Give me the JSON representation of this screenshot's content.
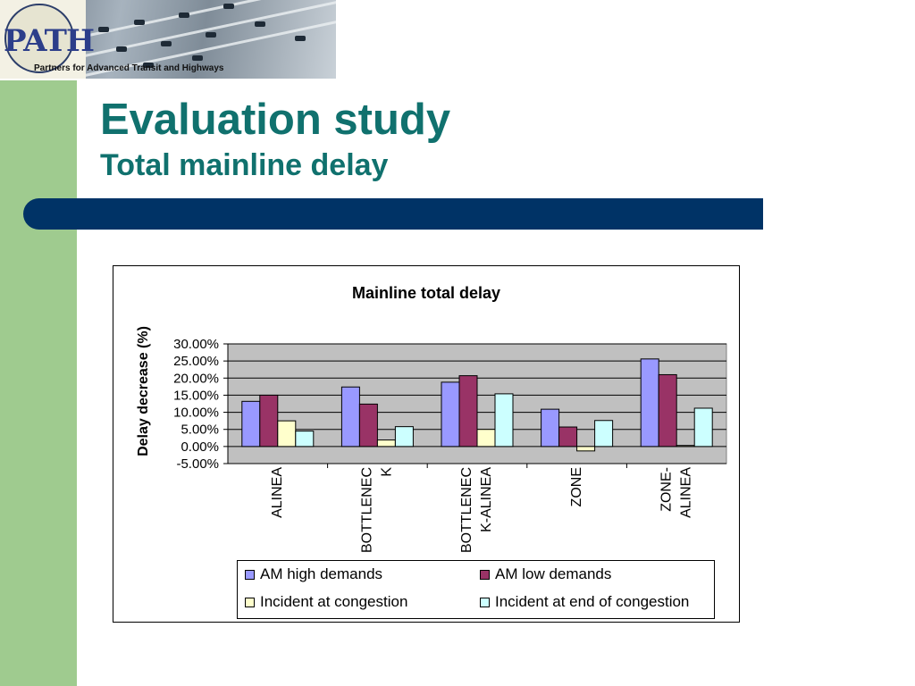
{
  "header": {
    "logo_text": "PATH",
    "tagline": "Partners for Advanced Transit and Highways"
  },
  "slide": {
    "title": "Evaluation study",
    "subtitle": "Total mainline delay"
  },
  "colors": {
    "title": "#10716e",
    "bar": "#003366",
    "left_band": "#9fcb8f",
    "plot_bg": "#c0c0c0"
  },
  "chart_data": {
    "type": "bar",
    "title": "Mainline total delay",
    "ylabel": "Delay decrease (%)",
    "xlabel": "",
    "ylim": [
      -5,
      30
    ],
    "yticks": [
      30,
      25,
      20,
      15,
      10,
      5,
      0,
      -5
    ],
    "ytick_labels": [
      "30.00%",
      "25.00%",
      "20.00%",
      "15.00%",
      "10.00%",
      "5.00%",
      "0.00%",
      "-5.00%"
    ],
    "categories": [
      "ALINEA",
      "BOTTLENECK",
      "BOTTLENECK-ALINEA",
      "ZONE",
      "ZONE-ALINEA"
    ],
    "category_label_lines": [
      [
        "ALINEA"
      ],
      [
        "BOTTLENEC",
        "K"
      ],
      [
        "BOTTLENEC",
        "K-ALINEA"
      ],
      [
        "ZONE"
      ],
      [
        "ZONE-",
        "ALINEA"
      ]
    ],
    "grid": true,
    "legend_position": "bottom",
    "series": [
      {
        "name": "AM high demands",
        "color": "#9999ff",
        "values": [
          13.2,
          17.4,
          18.8,
          10.9,
          25.6
        ]
      },
      {
        "name": "AM low demands",
        "color": "#993366",
        "values": [
          15.0,
          12.4,
          20.7,
          5.7,
          21.0
        ]
      },
      {
        "name": "Incident at congestion",
        "color": "#ffffcc",
        "values": [
          7.5,
          1.9,
          5.0,
          -1.3,
          0.3
        ]
      },
      {
        "name": "Incident at end of congestion",
        "color": "#ccffff",
        "values": [
          4.5,
          5.8,
          15.4,
          7.6,
          11.2
        ]
      }
    ]
  }
}
